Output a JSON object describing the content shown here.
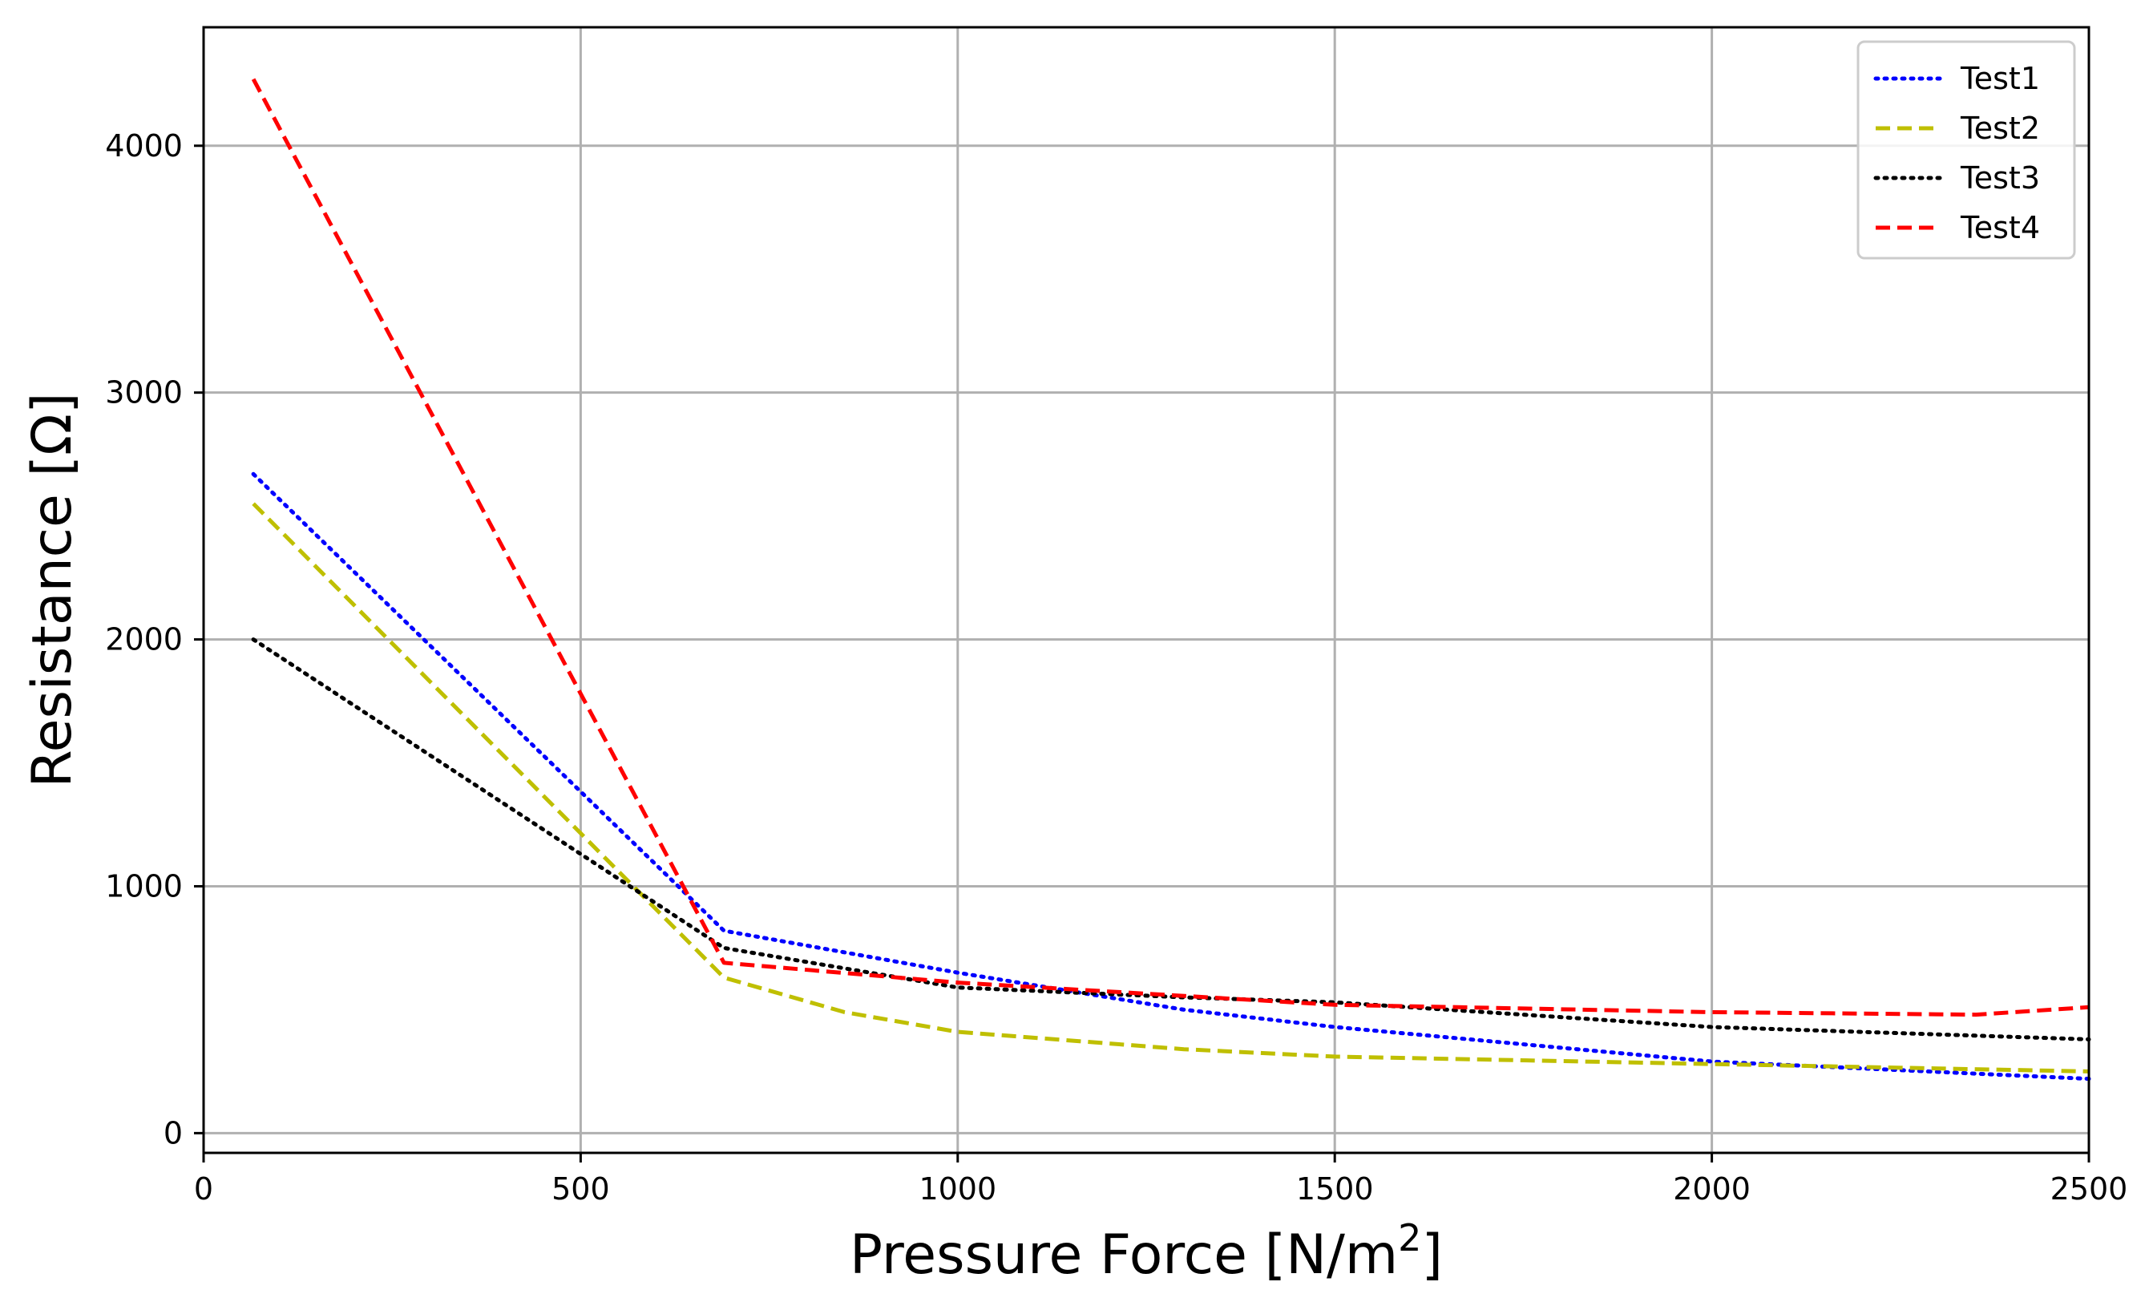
{
  "chart_data": {
    "type": "line",
    "title": "",
    "xlabel": "Pressure Force [N/m",
    "xlabel_superscript": "2",
    "xlabel_suffix": "]",
    "ylabel": "Resistance [Ω]",
    "xlim": [
      0,
      2500
    ],
    "ylim": [
      -80,
      4480
    ],
    "xticks": [
      0,
      500,
      1000,
      1500,
      2000,
      2500
    ],
    "xtick_labels": [
      "0",
      "500",
      "1000",
      "1500",
      "2000",
      "2500"
    ],
    "yticks": [
      0,
      1000,
      2000,
      3000,
      4000
    ],
    "ytick_labels": [
      "0",
      "1000",
      "2000",
      "3000",
      "4000"
    ],
    "grid": true,
    "legend_position": "top-right",
    "series": [
      {
        "name": "Test1",
        "color": "#0000ff",
        "style": "dotted",
        "x": [
          66,
          690,
          1000,
          1300,
          1500,
          2000,
          2500
        ],
        "y": [
          2670,
          820,
          650,
          500,
          430,
          290,
          220
        ]
      },
      {
        "name": "Test2",
        "color": "#bfbf00",
        "style": "dashed",
        "x": [
          66,
          690,
          850,
          1000,
          1300,
          1500,
          2000,
          2500
        ],
        "y": [
          2550,
          630,
          490,
          410,
          340,
          310,
          280,
          250
        ]
      },
      {
        "name": "Test3",
        "color": "#000000",
        "style": "dotted",
        "x": [
          66,
          690,
          1000,
          1300,
          1500,
          2000,
          2500
        ],
        "y": [
          2000,
          750,
          590,
          550,
          530,
          430,
          380
        ]
      },
      {
        "name": "Test4",
        "color": "#ff0000",
        "style": "dashed",
        "x": [
          66,
          690,
          1000,
          1500,
          2000,
          2350,
          2500
        ],
        "y": [
          4270,
          690,
          610,
          520,
          490,
          480,
          510
        ]
      }
    ]
  }
}
